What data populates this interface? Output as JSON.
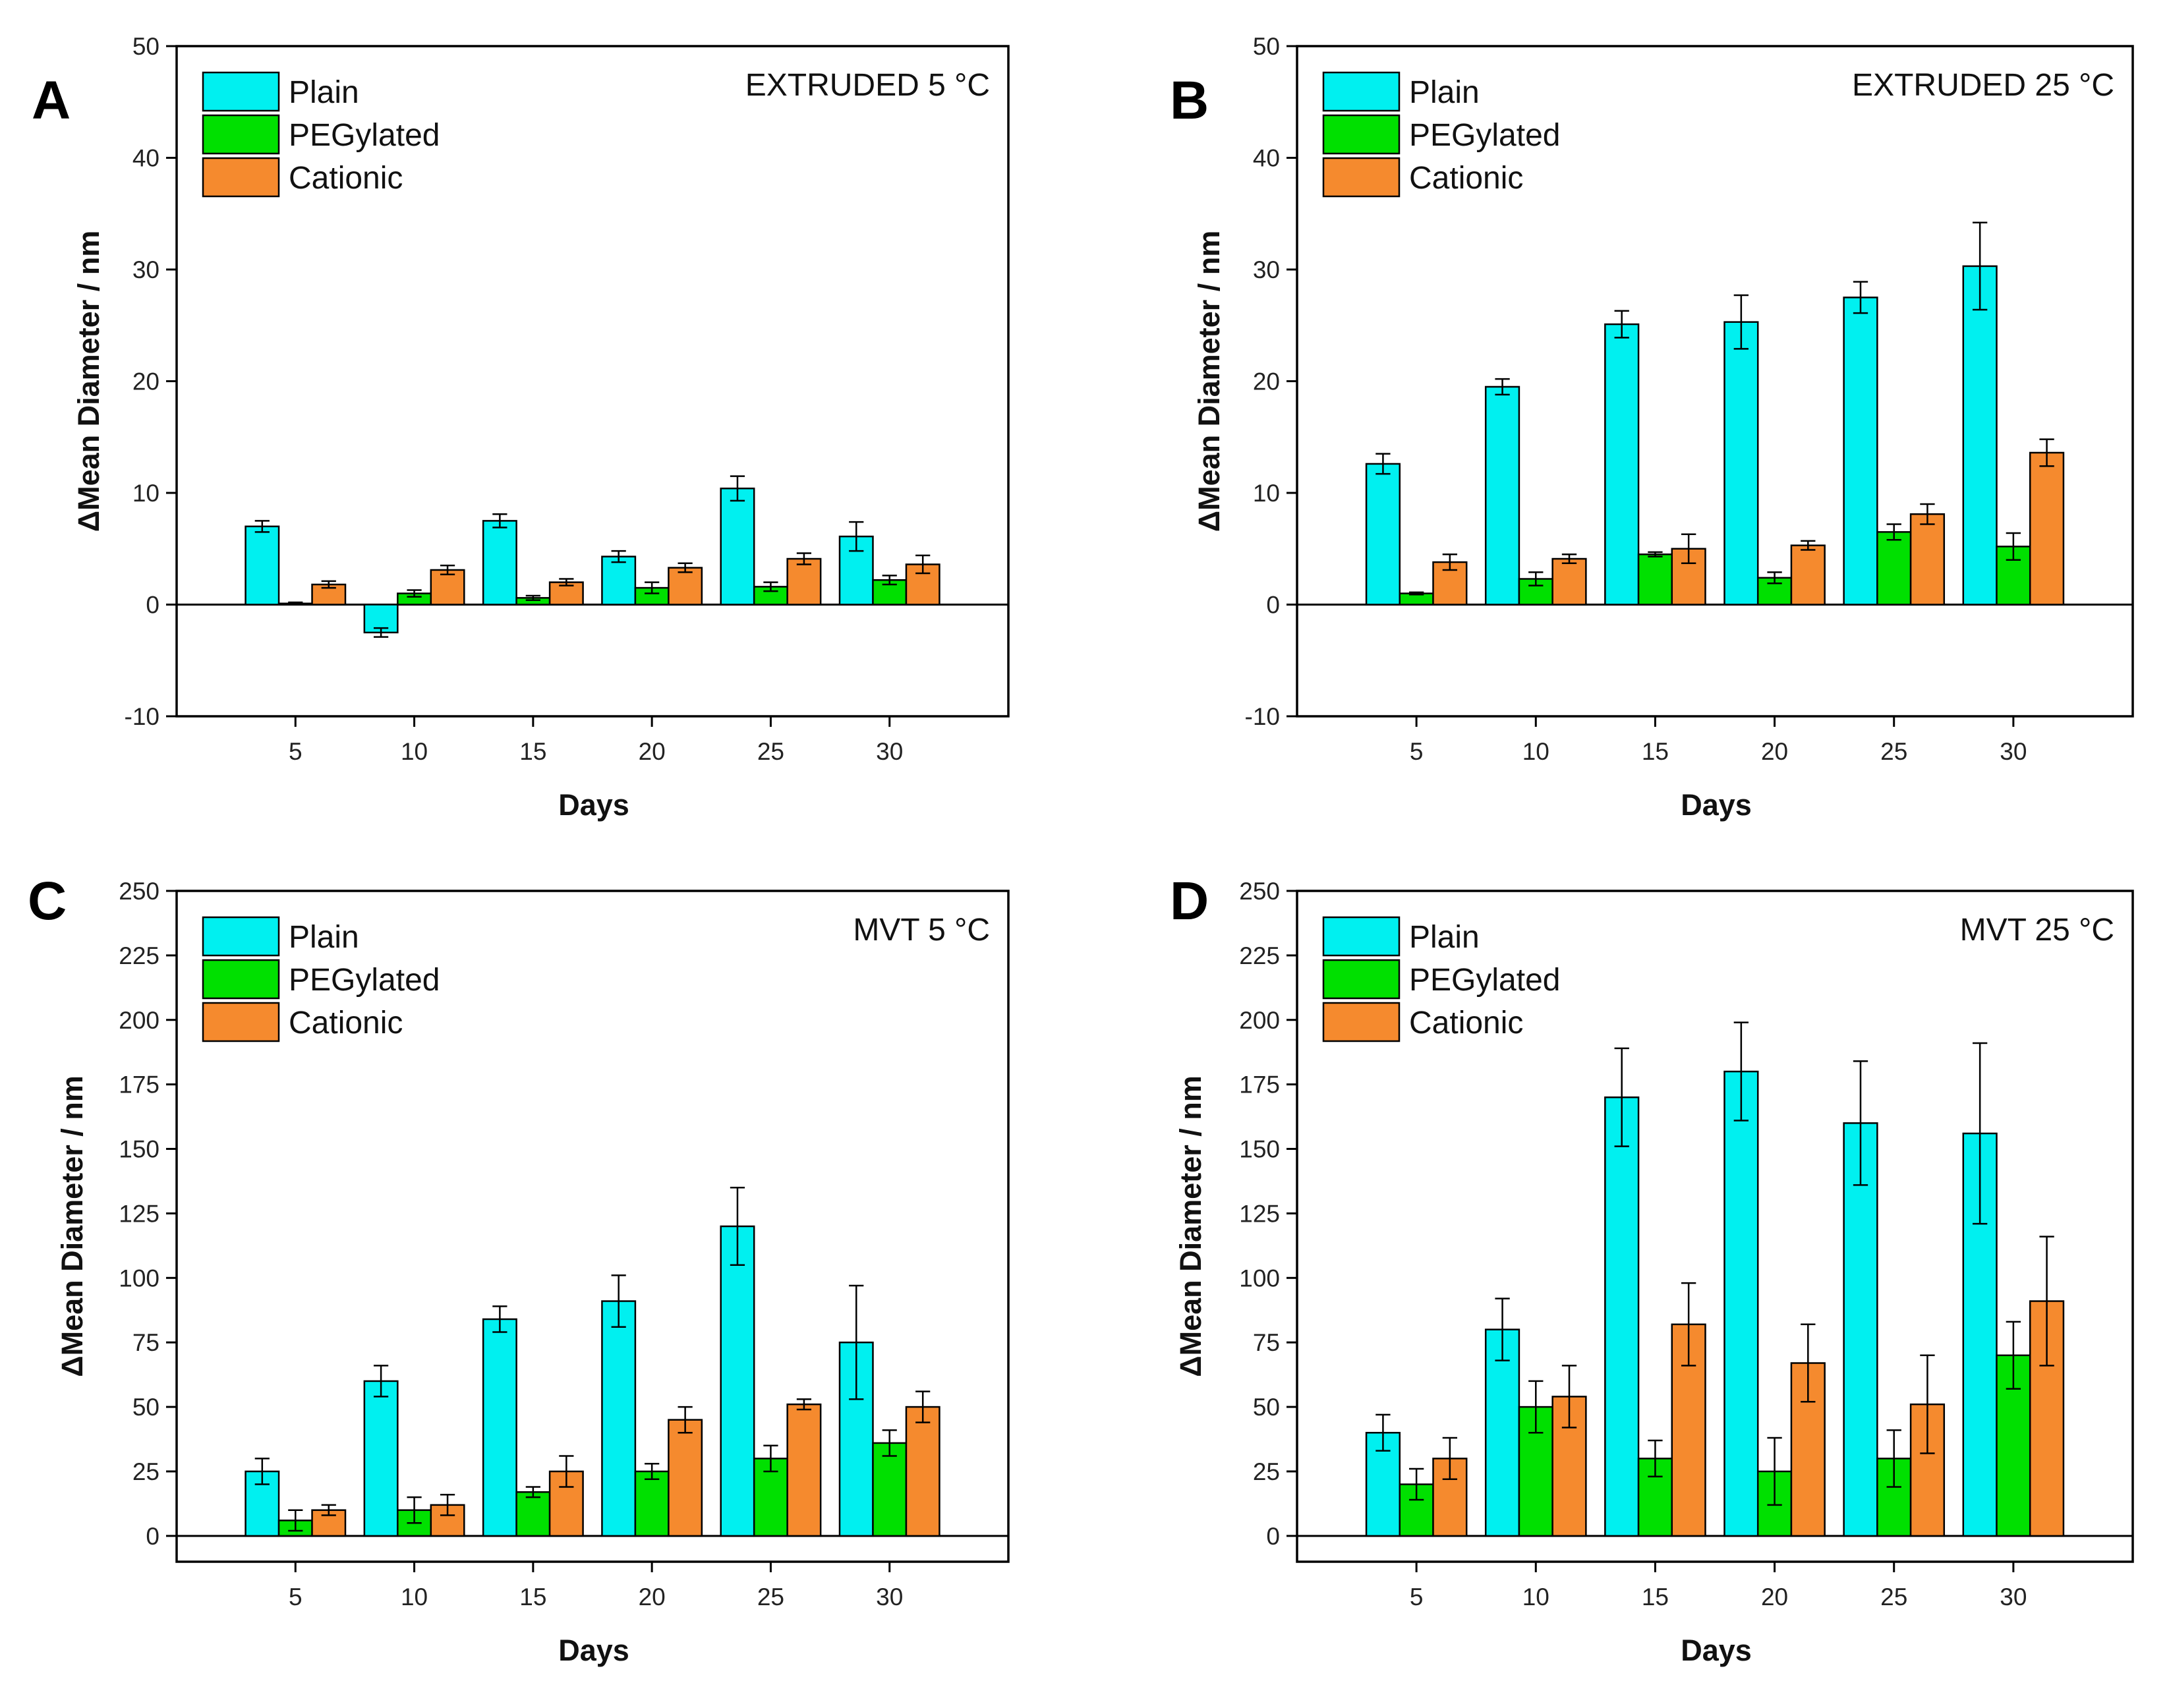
{
  "colors": {
    "Plain": "#00f0f0",
    "PEGylated": "#00e000",
    "Cationic": "#f58a2e",
    "frame": "#000000"
  },
  "chart_data": [
    {
      "type": "bar",
      "panel": "A",
      "condition": "EXTRUDED 5 °C",
      "xlabel": "Days",
      "ylabel": "ΔMean Diameter / nm",
      "categories": [
        "5",
        "10",
        "15",
        "20",
        "25",
        "30"
      ],
      "ylim": [
        -10,
        50
      ],
      "yticks": [
        -10,
        0,
        10,
        20,
        30,
        40,
        50
      ],
      "legend_position": "top-left",
      "series": [
        {
          "name": "Plain",
          "values": [
            7.0,
            -2.5,
            7.5,
            4.3,
            10.4,
            6.1
          ],
          "errors": [
            0.5,
            0.4,
            0.6,
            0.5,
            1.1,
            1.3
          ]
        },
        {
          "name": "PEGylated",
          "values": [
            0.1,
            1.0,
            0.6,
            1.5,
            1.6,
            2.2
          ],
          "errors": [
            0.1,
            0.3,
            0.2,
            0.5,
            0.4,
            0.4
          ]
        },
        {
          "name": "Cationic",
          "values": [
            1.8,
            3.1,
            2.0,
            3.3,
            4.1,
            3.6
          ],
          "errors": [
            0.3,
            0.4,
            0.3,
            0.4,
            0.5,
            0.8
          ]
        }
      ]
    },
    {
      "type": "bar",
      "panel": "B",
      "condition": "EXTRUDED 25 °C",
      "xlabel": "Days",
      "ylabel": "ΔMean Diameter / nm",
      "categories": [
        "5",
        "10",
        "15",
        "20",
        "25",
        "30"
      ],
      "ylim": [
        -10,
        50
      ],
      "yticks": [
        -10,
        0,
        10,
        20,
        30,
        40,
        50
      ],
      "legend_position": "top-left",
      "series": [
        {
          "name": "Plain",
          "values": [
            12.6,
            19.5,
            25.1,
            25.3,
            27.5,
            30.3
          ],
          "errors": [
            0.9,
            0.7,
            1.2,
            2.4,
            1.4,
            3.9
          ]
        },
        {
          "name": "PEGylated",
          "values": [
            1.0,
            2.3,
            4.5,
            2.4,
            6.5,
            5.2
          ],
          "errors": [
            0.1,
            0.6,
            0.2,
            0.5,
            0.7,
            1.2
          ]
        },
        {
          "name": "Cationic",
          "values": [
            3.8,
            4.1,
            5.0,
            5.3,
            8.1,
            13.6
          ],
          "errors": [
            0.7,
            0.4,
            1.3,
            0.4,
            0.9,
            1.2
          ]
        }
      ]
    },
    {
      "type": "bar",
      "panel": "C",
      "condition": "MVT 5 °C",
      "xlabel": "Days",
      "ylabel": "ΔMean Diameter / nm",
      "categories": [
        "5",
        "10",
        "15",
        "20",
        "25",
        "30"
      ],
      "ylim": [
        -10,
        250
      ],
      "yticks": [
        0,
        25,
        50,
        75,
        100,
        125,
        150,
        175,
        200,
        225,
        250
      ],
      "legend_position": "top-left",
      "series": [
        {
          "name": "Plain",
          "values": [
            25,
            60,
            84,
            91,
            120,
            75
          ],
          "errors": [
            5,
            6,
            5,
            10,
            15,
            22
          ]
        },
        {
          "name": "PEGylated",
          "values": [
            6,
            10,
            17,
            25,
            30,
            36
          ],
          "errors": [
            4,
            5,
            2,
            3,
            5,
            5
          ]
        },
        {
          "name": "Cationic",
          "values": [
            10,
            12,
            25,
            45,
            51,
            50
          ],
          "errors": [
            2,
            4,
            6,
            5,
            2,
            6
          ]
        }
      ]
    },
    {
      "type": "bar",
      "panel": "D",
      "condition": "MVT 25 °C",
      "xlabel": "Days",
      "ylabel": "ΔMean Diameter / nm",
      "categories": [
        "5",
        "10",
        "15",
        "20",
        "25",
        "30"
      ],
      "ylim": [
        -10,
        250
      ],
      "yticks": [
        0,
        25,
        50,
        75,
        100,
        125,
        150,
        175,
        200,
        225,
        250
      ],
      "legend_position": "top-left",
      "series": [
        {
          "name": "Plain",
          "values": [
            40,
            80,
            170,
            180,
            160,
            156
          ],
          "errors": [
            7,
            12,
            19,
            19,
            24,
            35
          ]
        },
        {
          "name": "PEGylated",
          "values": [
            20,
            50,
            30,
            25,
            30,
            70
          ],
          "errors": [
            6,
            10,
            7,
            13,
            11,
            13
          ]
        },
        {
          "name": "Cationic",
          "values": [
            30,
            54,
            82,
            67,
            51,
            91
          ],
          "errors": [
            8,
            12,
            16,
            15,
            19,
            25
          ]
        }
      ]
    }
  ]
}
